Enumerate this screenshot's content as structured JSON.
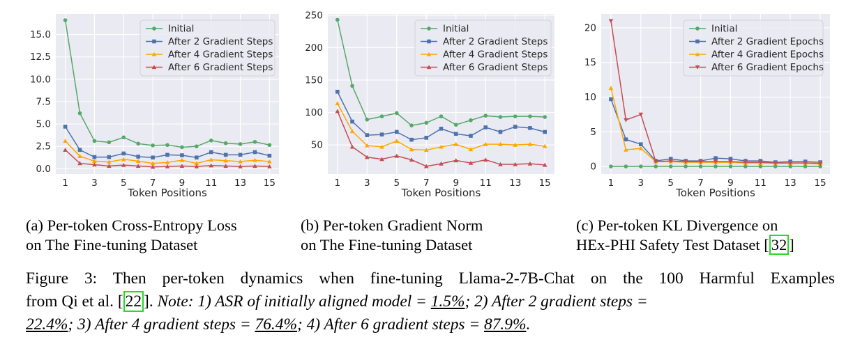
{
  "charts": [
    {
      "id": "a",
      "chart_data": {
        "type": "line",
        "x": [
          1,
          2,
          3,
          4,
          5,
          6,
          7,
          8,
          9,
          10,
          11,
          12,
          13,
          14,
          15
        ],
        "xticks": [
          1,
          3,
          5,
          7,
          9,
          11,
          13,
          15
        ],
        "xlabel": "Token Positions",
        "ylabel": "",
        "ylim": [
          -0.6,
          17.3
        ],
        "yticks": [
          0.0,
          2.5,
          5.0,
          7.5,
          10.0,
          12.5,
          15.0
        ],
        "ytick_labels": [
          "0.0",
          "2.5",
          "5.0",
          "7.5",
          "10.0",
          "12.5",
          "15.0"
        ],
        "series": [
          {
            "name": "Initial",
            "color": "#55a868",
            "marker": "circle",
            "values": [
              16.6,
              6.2,
              3.1,
              2.95,
              3.5,
              2.8,
              2.6,
              2.65,
              2.4,
              2.5,
              3.15,
              2.85,
              2.75,
              3.0,
              2.65
            ]
          },
          {
            "name": "After 2 Gradient Steps",
            "color": "#4c72b0",
            "marker": "square",
            "values": [
              4.7,
              2.1,
              1.3,
              1.3,
              1.7,
              1.35,
              1.25,
              1.55,
              1.5,
              1.25,
              1.85,
              1.55,
              1.55,
              1.85,
              1.45
            ]
          },
          {
            "name": "After 4 Gradient Steps",
            "color": "#ffa600",
            "marker": "triangle-up",
            "values": [
              3.1,
              1.4,
              0.85,
              0.75,
              1.05,
              0.85,
              0.6,
              0.7,
              0.95,
              0.6,
              1.0,
              0.9,
              0.8,
              0.95,
              0.8
            ]
          },
          {
            "name": "After 6 Gradient Steps",
            "color": "#c44e52",
            "marker": "triangle-up",
            "values": [
              2.1,
              0.6,
              0.45,
              0.3,
              0.4,
              0.3,
              0.2,
              0.25,
              0.3,
              0.25,
              0.35,
              0.3,
              0.25,
              0.3,
              0.25
            ]
          }
        ]
      },
      "caption_line1": "(a) Per-token Cross-Entropy Loss",
      "caption_line2": "on The Fine-tuning Dataset"
    },
    {
      "id": "b",
      "chart_data": {
        "type": "line",
        "x": [
          1,
          2,
          3,
          4,
          5,
          6,
          7,
          8,
          9,
          10,
          11,
          12,
          13,
          14,
          15
        ],
        "xticks": [
          1,
          3,
          5,
          7,
          9,
          11,
          13,
          15
        ],
        "xlabel": "Token Positions",
        "ylabel": "",
        "ylim": [
          5,
          252
        ],
        "yticks": [
          50,
          100,
          150,
          200,
          250
        ],
        "ytick_labels": [
          "50",
          "100",
          "150",
          "200",
          "250"
        ],
        "series": [
          {
            "name": "Initial",
            "color": "#55a868",
            "marker": "circle",
            "values": [
              243,
              141,
              89,
              94,
              99,
              80,
              84,
              94,
              81,
              88,
              95,
              93,
              94,
              94,
              93
            ]
          },
          {
            "name": "After 2 Gradient Steps",
            "color": "#4c72b0",
            "marker": "square",
            "values": [
              132,
              86,
              65,
              66,
              70,
              58,
              61,
              75,
              67,
              64,
              77,
              70,
              78,
              76,
              70
            ]
          },
          {
            "name": "After 4 Gradient Steps",
            "color": "#ffa600",
            "marker": "triangle-up",
            "values": [
              114,
              71,
              49,
              47,
              56,
              43,
              42,
              47,
              51,
              43,
              51,
              51,
              50,
              51,
              48
            ]
          },
          {
            "name": "After 6 Gradient Steps",
            "color": "#c44e52",
            "marker": "triangle-up",
            "values": [
              102,
              47,
              31,
              28,
              33,
              27,
              17,
              21,
              26,
              22,
              27,
              20,
              20,
              21,
              19
            ]
          }
        ]
      },
      "caption_line1": "(b) Per-token Gradient Norm",
      "caption_line2": "on The Fine-tuning Dataset"
    },
    {
      "id": "c",
      "chart_data": {
        "type": "line",
        "x": [
          1,
          2,
          3,
          4,
          5,
          6,
          7,
          8,
          9,
          10,
          11,
          12,
          13,
          14,
          15
        ],
        "xticks": [
          1,
          3,
          5,
          7,
          9,
          11,
          13,
          15
        ],
        "xlabel": "Token Positions",
        "ylabel": "",
        "ylim": [
          -1.1,
          22.0
        ],
        "yticks": [
          0,
          5,
          10,
          15,
          20
        ],
        "ytick_labels": [
          "0",
          "5",
          "10",
          "15",
          "20"
        ],
        "series": [
          {
            "name": "Initial",
            "color": "#55a868",
            "marker": "circle",
            "values": [
              0,
              0,
              0,
              0,
              0,
              0,
              0,
              0,
              0,
              0,
              0,
              0,
              0,
              0,
              0
            ]
          },
          {
            "name": "After 2 Gradient Epochs",
            "color": "#4c72b0",
            "marker": "square",
            "values": [
              9.7,
              3.9,
              3.2,
              0.8,
              1.1,
              0.8,
              0.8,
              1.2,
              1.1,
              0.8,
              0.8,
              0.6,
              0.7,
              0.7,
              0.6
            ]
          },
          {
            "name": "After 4 Gradient Epochs",
            "color": "#ffa600",
            "marker": "triangle-up",
            "values": [
              11.3,
              2.4,
              2.6,
              0.7,
              0.7,
              0.6,
              0.6,
              0.6,
              0.6,
              0.5,
              0.5,
              0.5,
              0.5,
              0.5,
              0.5
            ]
          },
          {
            "name": "After 6 Gradient Epochs",
            "color": "#c44e52",
            "marker": "triangle-down",
            "values": [
              21.0,
              6.7,
              7.5,
              0.7,
              0.8,
              0.7,
              0.7,
              0.7,
              0.7,
              0.6,
              0.6,
              0.5,
              0.5,
              0.5,
              0.4
            ]
          }
        ]
      },
      "caption_line1": "(c) Per-token KL Divergence on",
      "caption_line2": "HEx-PHI Safety Test Dataset [",
      "caption_cite": "32",
      "caption_close": "]"
    }
  ],
  "figure_caption": {
    "label": "Figure 3:",
    "text1": "Then per-token dynamics when fine-tuning Llama-2-7B-Chat on the 100 Harmful Examples",
    "text2_pre": "from Qi et al. [",
    "cite": "22",
    "text2_post": "]. ",
    "note_a": "Note: 1) ASR of initially aligned model = ",
    "val1": "1.5%",
    "note_b": "; 2) After 2 gradient steps =",
    "val2": "22.4%",
    "note_c": "; 3) After 4 gradient steps = ",
    "val3": "76.4%",
    "note_d": "; 4) After 6 gradient steps = ",
    "val4": "87.9%",
    "end": "."
  }
}
